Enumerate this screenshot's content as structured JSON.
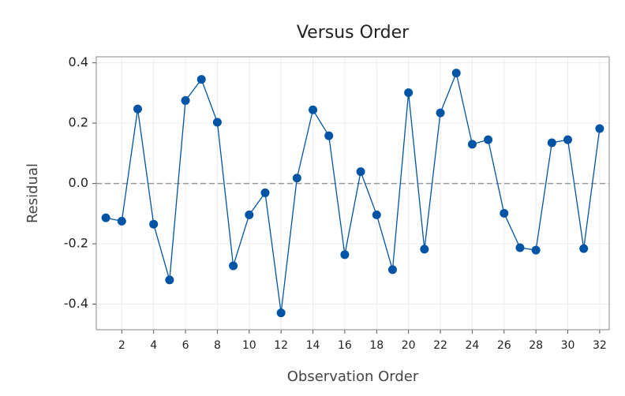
{
  "chart_data": {
    "type": "line",
    "title": "Versus Order",
    "xlabel": "Observation Order",
    "ylabel": "Residual",
    "x": [
      1,
      2,
      3,
      4,
      5,
      6,
      7,
      8,
      9,
      10,
      11,
      12,
      13,
      14,
      15,
      16,
      17,
      18,
      19,
      20,
      21,
      22,
      23,
      24,
      25,
      26,
      27,
      28,
      29,
      30,
      31,
      32
    ],
    "series": [
      {
        "name": "Residual",
        "color": "#0054a6",
        "values": [
          -0.114,
          -0.125,
          0.247,
          -0.135,
          -0.32,
          0.275,
          0.345,
          0.203,
          -0.273,
          -0.104,
          -0.031,
          -0.429,
          0.018,
          0.244,
          0.158,
          -0.236,
          0.039,
          -0.104,
          -0.286,
          0.301,
          -0.218,
          0.234,
          0.366,
          0.13,
          0.145,
          -0.099,
          -0.213,
          -0.221,
          0.135,
          0.145,
          -0.216,
          0.182
        ]
      }
    ],
    "xlim": [
      0.4,
      32.6
    ],
    "ylim": [
      -0.485,
      0.42
    ],
    "xticks": [
      2,
      4,
      6,
      8,
      10,
      12,
      14,
      16,
      18,
      20,
      22,
      24,
      26,
      28,
      30,
      32
    ],
    "yticks": [
      -0.4,
      -0.2,
      {
        "value": 0,
        "label": "0.0"
      },
      0.2,
      0.4
    ],
    "reference_line": 0,
    "grid": true
  }
}
